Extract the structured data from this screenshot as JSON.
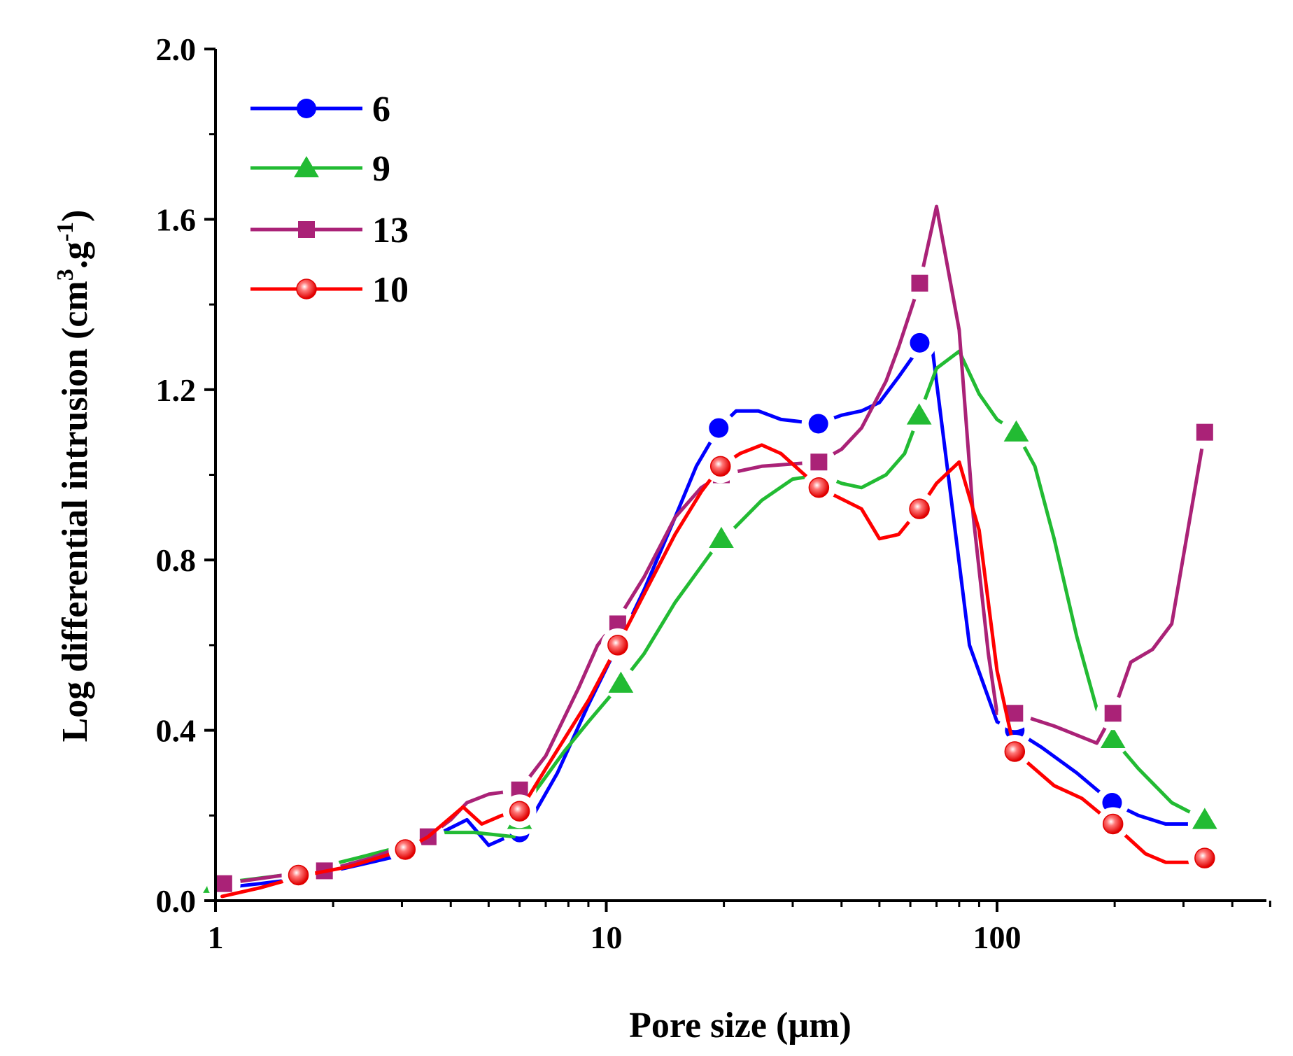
{
  "chart_data": {
    "type": "line",
    "title": "",
    "xlabel": "Pore  size (µm)",
    "ylabel_main": "Log differential intrusion (cm",
    "ylabel_sup1": "3",
    "ylabel_mid": ".g",
    "ylabel_sup2": "-1",
    "ylabel_end": ")",
    "x_scale": "log",
    "xlim": [
      1,
      500
    ],
    "ylim": [
      0,
      2.0
    ],
    "x_ticks": [
      1,
      10,
      100
    ],
    "x_tick_labels": [
      "1",
      "10",
      "100"
    ],
    "y_ticks": [
      0,
      0.4,
      0.8,
      1.2,
      1.6,
      2.0
    ],
    "y_tick_labels": [
      "0.0",
      "0.4",
      "0.8",
      "1.2",
      "1.6",
      "2.0"
    ],
    "grid": false,
    "legend_position": "top-left",
    "series": [
      {
        "name": "6",
        "color": "#0000ff",
        "marker": "circle",
        "line": [
          [
            1.04,
            0.03
          ],
          [
            1.3,
            0.04
          ],
          [
            1.6,
            0.05
          ],
          [
            2.0,
            0.07
          ],
          [
            2.5,
            0.09
          ],
          [
            3.1,
            0.11
          ],
          [
            3.6,
            0.15
          ],
          [
            4.4,
            0.19
          ],
          [
            5.0,
            0.13
          ],
          [
            5.6,
            0.15
          ],
          [
            6.0,
            0.16
          ],
          [
            6.5,
            0.2
          ],
          [
            7.5,
            0.3
          ],
          [
            9.0,
            0.46
          ],
          [
            10.7,
            0.6
          ],
          [
            12.5,
            0.73
          ],
          [
            15.0,
            0.9
          ],
          [
            17.0,
            1.02
          ],
          [
            19.4,
            1.11
          ],
          [
            21.5,
            1.15
          ],
          [
            24.5,
            1.15
          ],
          [
            28.0,
            1.13
          ],
          [
            34.9,
            1.12
          ],
          [
            40.0,
            1.14
          ],
          [
            45.0,
            1.15
          ],
          [
            50.0,
            1.17
          ],
          [
            56.0,
            1.23
          ],
          [
            63.4,
            1.3
          ],
          [
            68.0,
            1.31
          ],
          [
            75.0,
            1.0
          ],
          [
            85.0,
            0.6
          ],
          [
            100.0,
            0.42
          ],
          [
            111.0,
            0.4
          ],
          [
            130.0,
            0.36
          ],
          [
            160.0,
            0.3
          ],
          [
            197.0,
            0.23
          ],
          [
            230.0,
            0.2
          ],
          [
            270.0,
            0.18
          ],
          [
            340.0,
            0.18
          ]
        ],
        "markers": [
          [
            1.04,
            0.04
          ],
          [
            1.63,
            0.05
          ],
          [
            3.1,
            0.11
          ],
          [
            6.0,
            0.16
          ],
          [
            10.7,
            0.61
          ],
          [
            19.4,
            1.11
          ],
          [
            34.9,
            1.12
          ],
          [
            63.4,
            1.31
          ],
          [
            111.0,
            0.4
          ],
          [
            197.0,
            0.23
          ],
          [
            340.0,
            0.18
          ]
        ]
      },
      {
        "name": "9",
        "color": "#22bb33",
        "marker": "triangle",
        "line": [
          [
            1.0,
            0.04
          ],
          [
            1.5,
            0.06
          ],
          [
            1.88,
            0.08
          ],
          [
            2.3,
            0.1
          ],
          [
            3.4,
            0.14
          ],
          [
            3.8,
            0.16
          ],
          [
            4.6,
            0.16
          ],
          [
            5.8,
            0.15
          ],
          [
            6.0,
            0.19
          ],
          [
            6.5,
            0.25
          ],
          [
            7.8,
            0.35
          ],
          [
            9.0,
            0.42
          ],
          [
            10.9,
            0.51
          ],
          [
            12.5,
            0.58
          ],
          [
            15.0,
            0.7
          ],
          [
            19.7,
            0.85
          ],
          [
            21.0,
            0.87
          ],
          [
            25.0,
            0.94
          ],
          [
            30.0,
            0.99
          ],
          [
            35.5,
            1.0
          ],
          [
            40.0,
            0.98
          ],
          [
            45.0,
            0.97
          ],
          [
            52.0,
            1.0
          ],
          [
            58.0,
            1.05
          ],
          [
            63.2,
            1.14
          ],
          [
            70.0,
            1.25
          ],
          [
            80.0,
            1.29
          ],
          [
            90.0,
            1.19
          ],
          [
            100.0,
            1.13
          ],
          [
            112.0,
            1.1
          ],
          [
            125.0,
            1.02
          ],
          [
            140.0,
            0.85
          ],
          [
            160.0,
            0.62
          ],
          [
            180.0,
            0.45
          ],
          [
            198.0,
            0.38
          ],
          [
            230.0,
            0.31
          ],
          [
            280.0,
            0.23
          ],
          [
            340.0,
            0.19
          ]
        ],
        "markers": [
          [
            1.0,
            0.04
          ],
          [
            1.88,
            0.08
          ],
          [
            3.4,
            0.14
          ],
          [
            6.0,
            0.19
          ],
          [
            10.9,
            0.51
          ],
          [
            19.7,
            0.85
          ],
          [
            35.5,
            1.0
          ],
          [
            63.2,
            1.14
          ],
          [
            112.0,
            1.1
          ],
          [
            198.0,
            0.38
          ],
          [
            340.0,
            0.19
          ]
        ]
      },
      {
        "name": "13",
        "color": "#aa2277",
        "marker": "square",
        "line": [
          [
            1.05,
            0.04
          ],
          [
            1.5,
            0.06
          ],
          [
            1.9,
            0.07
          ],
          [
            2.5,
            0.1
          ],
          [
            3.5,
            0.15
          ],
          [
            4.0,
            0.19
          ],
          [
            4.4,
            0.23
          ],
          [
            5.0,
            0.25
          ],
          [
            6.0,
            0.26
          ],
          [
            7.0,
            0.34
          ],
          [
            8.5,
            0.5
          ],
          [
            9.5,
            0.6
          ],
          [
            10.7,
            0.66
          ],
          [
            12.5,
            0.76
          ],
          [
            15.0,
            0.9
          ],
          [
            17.5,
            0.97
          ],
          [
            19.7,
            1.0
          ],
          [
            25.0,
            1.02
          ],
          [
            35.0,
            1.03
          ],
          [
            40.0,
            1.06
          ],
          [
            45.0,
            1.11
          ],
          [
            52.0,
            1.22
          ],
          [
            56.0,
            1.3
          ],
          [
            63.4,
            1.45
          ],
          [
            70.0,
            1.63
          ],
          [
            80.0,
            1.34
          ],
          [
            87.0,
            0.9
          ],
          [
            95.0,
            0.58
          ],
          [
            100.0,
            0.44
          ],
          [
            111.0,
            0.44
          ],
          [
            140.0,
            0.41
          ],
          [
            180.0,
            0.37
          ],
          [
            198.0,
            0.44
          ],
          [
            220.0,
            0.56
          ],
          [
            250.0,
            0.59
          ],
          [
            280.0,
            0.65
          ],
          [
            340.0,
            1.1
          ]
        ],
        "markers": [
          [
            1.05,
            0.04
          ],
          [
            1.9,
            0.07
          ],
          [
            3.5,
            0.15
          ],
          [
            6.0,
            0.26
          ],
          [
            10.7,
            0.65
          ],
          [
            19.7,
            1.0
          ],
          [
            35.0,
            1.03
          ],
          [
            63.4,
            1.45
          ],
          [
            111.0,
            0.44
          ],
          [
            198.0,
            0.44
          ],
          [
            340.0,
            1.1
          ]
        ]
      },
      {
        "name": "10",
        "color": "#ff0000",
        "marker": "circle-shaded",
        "line": [
          [
            1.04,
            0.01
          ],
          [
            1.3,
            0.03
          ],
          [
            1.7,
            0.06
          ],
          [
            2.2,
            0.08
          ],
          [
            3.06,
            0.12
          ],
          [
            3.5,
            0.15
          ],
          [
            4.3,
            0.22
          ],
          [
            4.8,
            0.18
          ],
          [
            5.4,
            0.2
          ],
          [
            6.0,
            0.21
          ],
          [
            7.0,
            0.31
          ],
          [
            9.0,
            0.47
          ],
          [
            10.7,
            0.6
          ],
          [
            12.5,
            0.72
          ],
          [
            15.0,
            0.86
          ],
          [
            17.5,
            0.96
          ],
          [
            19.6,
            1.02
          ],
          [
            22.0,
            1.05
          ],
          [
            25.0,
            1.07
          ],
          [
            28.0,
            1.05
          ],
          [
            35.0,
            0.97
          ],
          [
            45.0,
            0.92
          ],
          [
            50.0,
            0.85
          ],
          [
            56.0,
            0.86
          ],
          [
            63.3,
            0.92
          ],
          [
            70.0,
            0.98
          ],
          [
            80.0,
            1.03
          ],
          [
            90.0,
            0.87
          ],
          [
            100.0,
            0.54
          ],
          [
            111.0,
            0.35
          ],
          [
            140.0,
            0.27
          ],
          [
            165.0,
            0.24
          ],
          [
            198.0,
            0.18
          ],
          [
            240.0,
            0.11
          ],
          [
            270.0,
            0.09
          ],
          [
            340.0,
            0.09
          ]
        ],
        "markers": [
          [
            1.63,
            0.06
          ],
          [
            3.06,
            0.12
          ],
          [
            6.0,
            0.21
          ],
          [
            10.7,
            0.6
          ],
          [
            19.6,
            1.02
          ],
          [
            35.0,
            0.97
          ],
          [
            63.3,
            0.92
          ],
          [
            111.0,
            0.35
          ],
          [
            198.0,
            0.18
          ],
          [
            340.0,
            0.1
          ]
        ]
      }
    ]
  }
}
